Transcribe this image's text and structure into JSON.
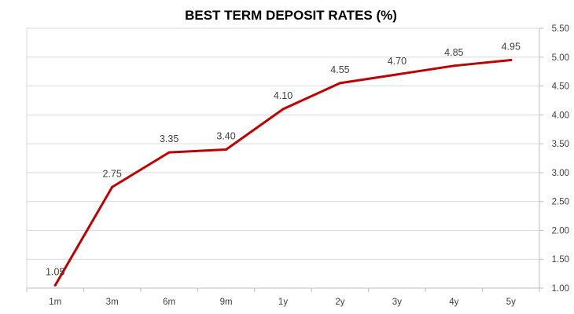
{
  "chart_data": {
    "type": "line",
    "title": "BEST TERM DEPOSIT RATES (%)",
    "xlabel": "",
    "ylabel": "",
    "categories": [
      "1m",
      "3m",
      "6m",
      "9m",
      "1y",
      "2y",
      "3y",
      "4y",
      "5y"
    ],
    "series": [
      {
        "values": [
          1.05,
          2.75,
          3.35,
          3.4,
          4.1,
          4.55,
          4.7,
          4.85,
          4.95
        ],
        "labels": [
          "1.05",
          "2.75",
          "3.35",
          "3.40",
          "4.10",
          "4.55",
          "4.70",
          "4.85",
          "4.95"
        ],
        "color": "#C00000"
      }
    ],
    "ylim": [
      1.0,
      5.5
    ],
    "yticks": [
      1.0,
      1.5,
      2.0,
      2.5,
      3.0,
      3.5,
      4.0,
      4.5,
      5.0,
      5.5
    ],
    "ytick_labels": [
      "1.00",
      "1.50",
      "2.00",
      "2.50",
      "3.00",
      "3.50",
      "4.00",
      "4.50",
      "5.00",
      "5.50"
    ],
    "y_axis_position": "right",
    "grid": true,
    "gridline_color": "#D9D9D9",
    "axis_color": "#BFBFBF",
    "legend": false
  }
}
